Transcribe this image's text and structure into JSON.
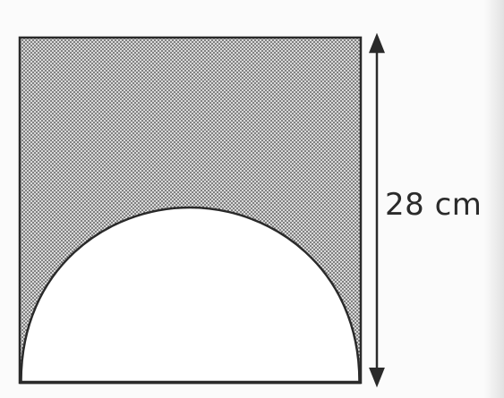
{
  "diagram": {
    "side_label": "28 cm",
    "colors": {
      "stroke": "#2a2a2a",
      "shade_dot": "#3a3a3a",
      "shade_bg": "#d6d6d6",
      "blank": "#ffffff"
    }
  }
}
